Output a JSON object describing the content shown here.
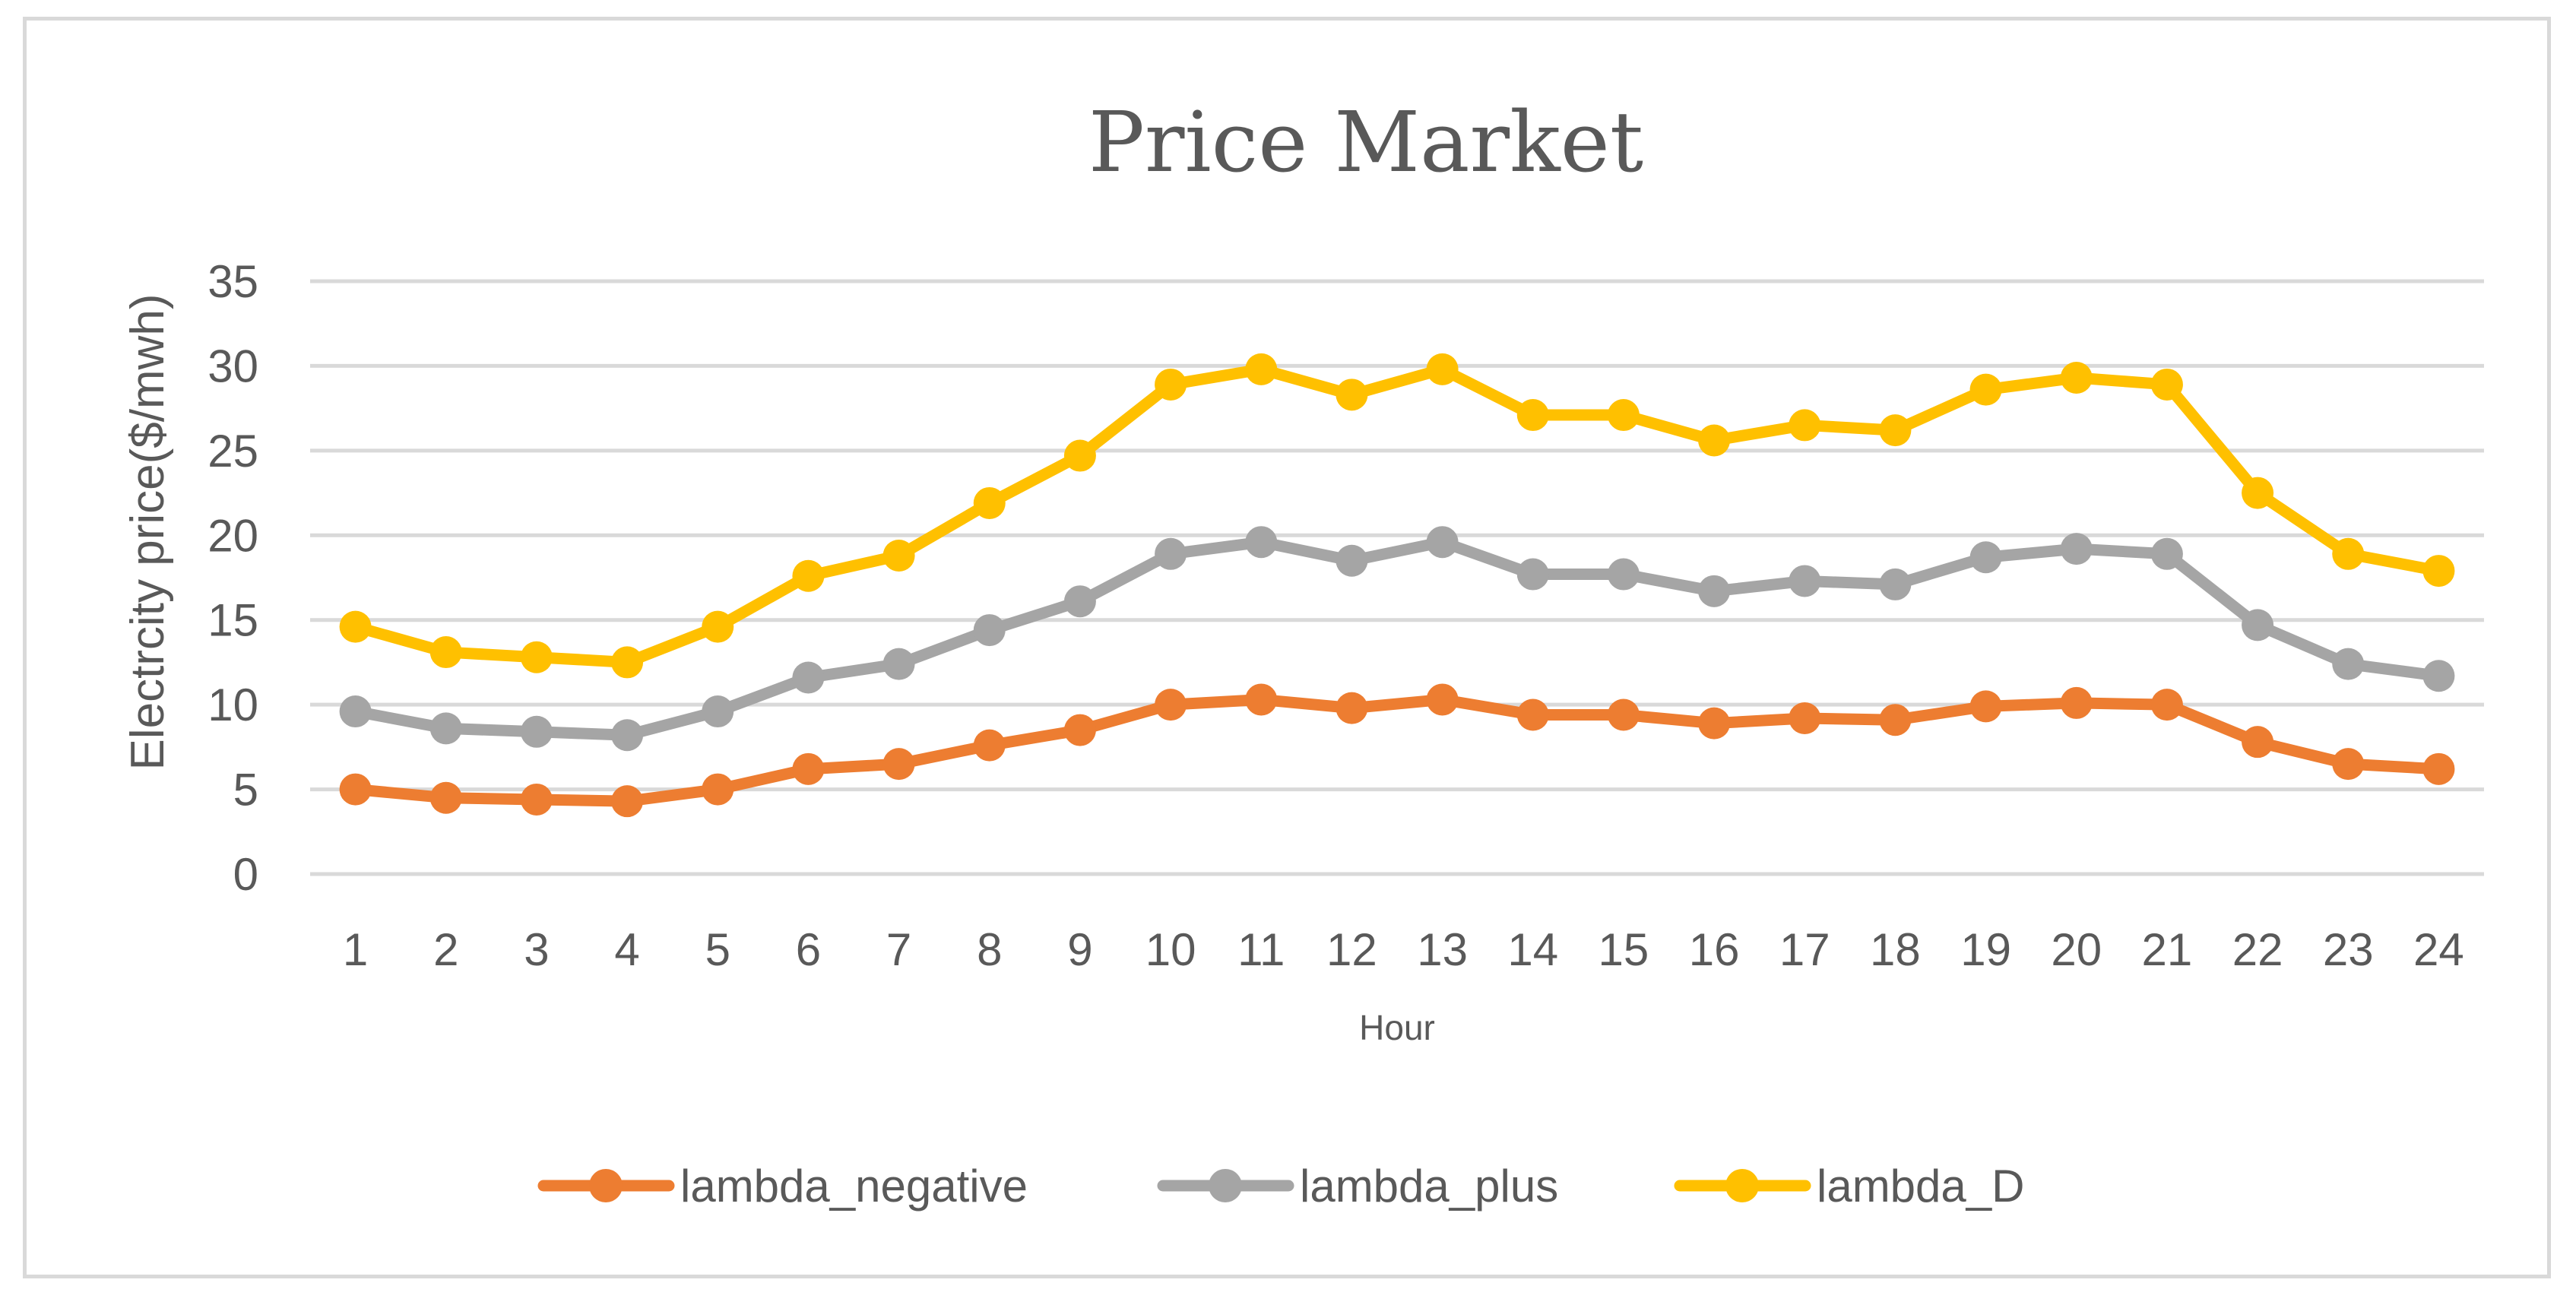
{
  "chart_data": {
    "type": "line",
    "title": "Price Market",
    "xlabel": "Hour",
    "ylabel": "Electrcity price($/mwh)",
    "ylim": [
      0,
      35
    ],
    "yticks": [
      0,
      5,
      10,
      15,
      20,
      25,
      30,
      35
    ],
    "grid": true,
    "legend_position": "bottom",
    "categories": [
      "1",
      "2",
      "3",
      "4",
      "5",
      "6",
      "7",
      "8",
      "9",
      "10",
      "11",
      "12",
      "13",
      "14",
      "15",
      "16",
      "17",
      "18",
      "19",
      "20",
      "21",
      "22",
      "23",
      "24"
    ],
    "series": [
      {
        "name": "lambda_negative",
        "color": "#ED7D31",
        "values": [
          5.0,
          4.5,
          4.4,
          4.3,
          5.0,
          6.2,
          6.5,
          7.6,
          8.5,
          10.0,
          10.3,
          9.8,
          10.3,
          9.4,
          9.4,
          8.9,
          9.2,
          9.1,
          9.9,
          10.1,
          10.0,
          7.8,
          6.5,
          6.2
        ]
      },
      {
        "name": "lambda_plus",
        "color": "#A5A5A5",
        "values": [
          9.6,
          8.6,
          8.4,
          8.2,
          9.6,
          11.6,
          12.4,
          14.4,
          16.1,
          18.9,
          19.6,
          18.5,
          19.6,
          17.7,
          17.7,
          16.7,
          17.3,
          17.1,
          18.7,
          19.2,
          18.9,
          14.7,
          12.4,
          11.7
        ]
      },
      {
        "name": "lambda_D",
        "color": "#FFC000",
        "values": [
          14.6,
          13.1,
          12.8,
          12.5,
          14.6,
          17.6,
          18.8,
          21.9,
          24.7,
          28.9,
          29.8,
          28.3,
          29.8,
          27.1,
          27.1,
          25.6,
          26.5,
          26.2,
          28.6,
          29.3,
          28.9,
          22.5,
          18.9,
          17.9
        ]
      }
    ]
  }
}
